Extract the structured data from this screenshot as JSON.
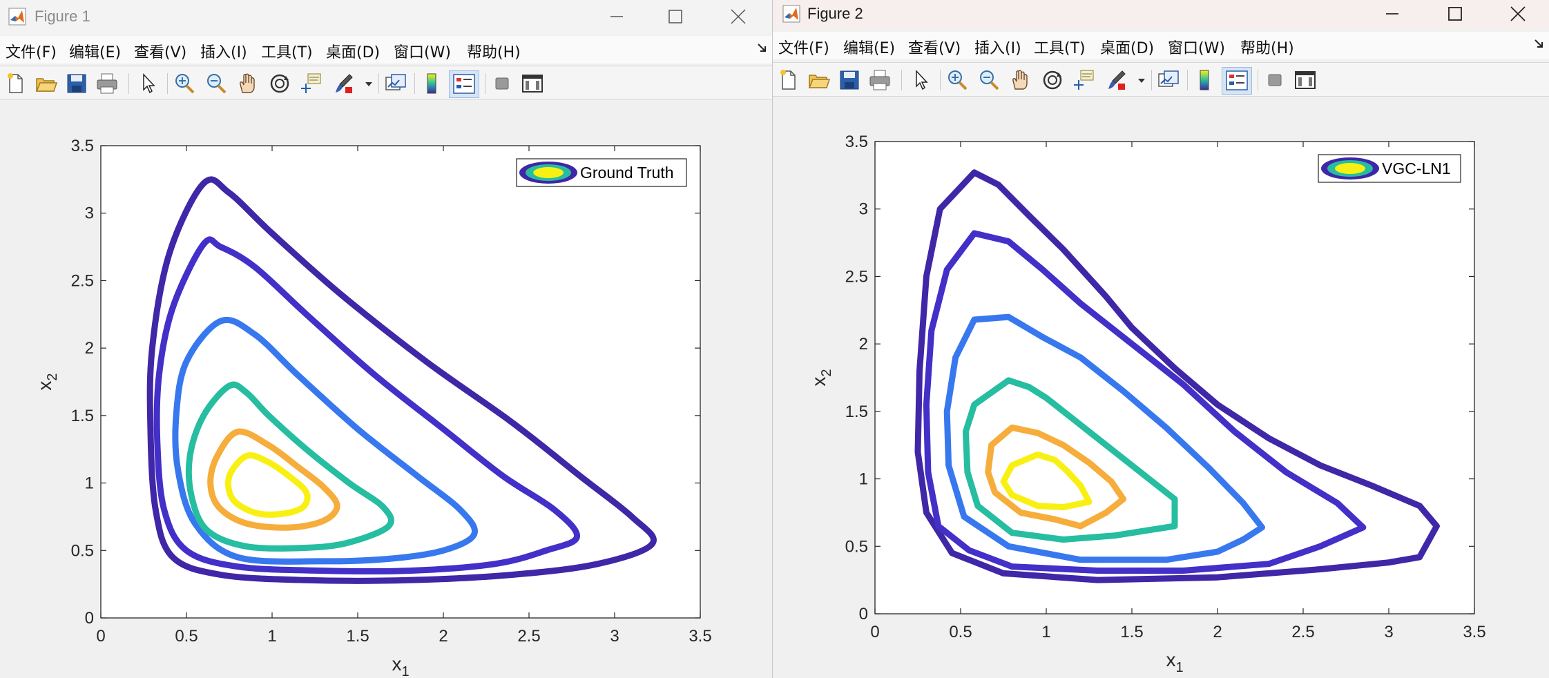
{
  "windows": [
    {
      "title": "Figure 1",
      "menu": [
        "文件(F)",
        "编辑(E)",
        "查看(V)",
        "插入(I)",
        "工具(T)",
        "桌面(D)",
        "窗口(W)",
        "帮助(H)"
      ],
      "legend": "Ground Truth",
      "toolbar_icons": [
        "new-figure-icon",
        "open-file-icon",
        "save-icon",
        "print-icon",
        "pointer-icon",
        "zoom-in-icon",
        "zoom-out-icon",
        "pan-icon",
        "rotate-3d-icon",
        "data-cursor-icon",
        "brush-icon",
        "link-plot-icon",
        "colorbar-icon",
        "legend-icon",
        "hide-plot-tools-icon",
        "show-plot-tools-icon"
      ],
      "chart_data": {
        "type": "contour",
        "xlabel": "x",
        "xlabel_sub": "1",
        "ylabel": "x",
        "ylabel_sub": "2",
        "xlim": [
          0,
          3.5
        ],
        "ylim": [
          0,
          3.5
        ],
        "xticks": [
          "0",
          "0.5",
          "1",
          "1.5",
          "2",
          "2.5",
          "3",
          "3.5"
        ],
        "yticks": [
          "0",
          "0.5",
          "1",
          "1.5",
          "2",
          "2.5",
          "3",
          "3.5"
        ],
        "legend_position": "top-right",
        "grid": false,
        "levels": [
          {
            "color": "#3f27a7",
            "points": [
              [
                0.6,
                3.22
              ],
              [
                0.4,
                2.7
              ],
              [
                0.3,
                2.0
              ],
              [
                0.29,
                1.4
              ],
              [
                0.32,
                0.8
              ],
              [
                0.42,
                0.45
              ],
              [
                0.7,
                0.32
              ],
              [
                1.2,
                0.28
              ],
              [
                1.8,
                0.28
              ],
              [
                2.4,
                0.32
              ],
              [
                2.9,
                0.4
              ],
              [
                3.22,
                0.55
              ],
              [
                3.1,
                0.75
              ],
              [
                2.8,
                1.05
              ],
              [
                2.4,
                1.45
              ],
              [
                1.9,
                1.9
              ],
              [
                1.4,
                2.4
              ],
              [
                1.0,
                2.85
              ],
              [
                0.75,
                3.15
              ]
            ]
          },
          {
            "color": "#4230c8",
            "points": [
              [
                0.6,
                2.77
              ],
              [
                0.42,
                2.3
              ],
              [
                0.34,
                1.8
              ],
              [
                0.33,
                1.3
              ],
              [
                0.37,
                0.8
              ],
              [
                0.5,
                0.5
              ],
              [
                0.8,
                0.38
              ],
              [
                1.3,
                0.35
              ],
              [
                1.8,
                0.35
              ],
              [
                2.3,
                0.4
              ],
              [
                2.6,
                0.5
              ],
              [
                2.78,
                0.6
              ],
              [
                2.65,
                0.8
              ],
              [
                2.35,
                1.05
              ],
              [
                2.0,
                1.4
              ],
              [
                1.6,
                1.8
              ],
              [
                1.2,
                2.25
              ],
              [
                0.9,
                2.6
              ],
              [
                0.7,
                2.75
              ]
            ]
          },
          {
            "color": "#3878ef",
            "points": [
              [
                0.7,
                2.2
              ],
              [
                0.5,
                1.9
              ],
              [
                0.44,
                1.5
              ],
              [
                0.45,
                1.1
              ],
              [
                0.55,
                0.7
              ],
              [
                0.8,
                0.45
              ],
              [
                1.3,
                0.42
              ],
              [
                1.7,
                0.44
              ],
              [
                2.0,
                0.5
              ],
              [
                2.18,
                0.62
              ],
              [
                2.1,
                0.8
              ],
              [
                1.85,
                1.05
              ],
              [
                1.5,
                1.4
              ],
              [
                1.15,
                1.8
              ],
              [
                0.9,
                2.1
              ]
            ]
          },
          {
            "color": "#26bda0",
            "points": [
              [
                0.75,
                1.72
              ],
              [
                0.6,
                1.5
              ],
              [
                0.52,
                1.2
              ],
              [
                0.53,
                0.9
              ],
              [
                0.62,
                0.65
              ],
              [
                0.85,
                0.53
              ],
              [
                1.2,
                0.52
              ],
              [
                1.45,
                0.56
              ],
              [
                1.68,
                0.68
              ],
              [
                1.65,
                0.82
              ],
              [
                1.45,
                1.0
              ],
              [
                1.2,
                1.25
              ],
              [
                0.98,
                1.5
              ],
              [
                0.85,
                1.67
              ]
            ]
          },
          {
            "color": "#f6ad3b",
            "points": [
              [
                0.8,
                1.38
              ],
              [
                0.68,
                1.2
              ],
              [
                0.64,
                1.0
              ],
              [
                0.69,
                0.82
              ],
              [
                0.85,
                0.7
              ],
              [
                1.1,
                0.67
              ],
              [
                1.3,
                0.72
              ],
              [
                1.38,
                0.83
              ],
              [
                1.3,
                0.97
              ],
              [
                1.15,
                1.12
              ],
              [
                0.98,
                1.28
              ]
            ]
          },
          {
            "color": "#f9f013",
            "points": [
              [
                0.85,
                1.2
              ],
              [
                0.75,
                1.05
              ],
              [
                0.77,
                0.88
              ],
              [
                0.9,
                0.78
              ],
              [
                1.05,
                0.77
              ],
              [
                1.18,
                0.82
              ],
              [
                1.2,
                0.93
              ],
              [
                1.1,
                1.05
              ],
              [
                0.97,
                1.16
              ]
            ]
          }
        ]
      }
    },
    {
      "title": "Figure 2",
      "menu": [
        "文件(F)",
        "编辑(E)",
        "查看(V)",
        "插入(I)",
        "工具(T)",
        "桌面(D)",
        "窗口(W)",
        "帮助(H)"
      ],
      "legend": "VGC-LN1",
      "toolbar_icons": [
        "new-figure-icon",
        "open-file-icon",
        "save-icon",
        "print-icon",
        "pointer-icon",
        "zoom-in-icon",
        "zoom-out-icon",
        "pan-icon",
        "rotate-3d-icon",
        "data-cursor-icon",
        "brush-icon",
        "link-plot-icon",
        "colorbar-icon",
        "legend-icon",
        "hide-plot-tools-icon",
        "show-plot-tools-icon"
      ],
      "chart_data": {
        "type": "contour",
        "xlabel": "x",
        "xlabel_sub": "1",
        "ylabel": "x",
        "ylabel_sub": "2",
        "xlim": [
          0,
          3.5
        ],
        "ylim": [
          0,
          3.5
        ],
        "xticks": [
          "0",
          "0.5",
          "1",
          "1.5",
          "2",
          "2.5",
          "3",
          "3.5"
        ],
        "yticks": [
          "0",
          "0.5",
          "1",
          "1.5",
          "2",
          "2.5",
          "3",
          "3.5"
        ],
        "legend_position": "top-right",
        "grid": false,
        "levels": [
          {
            "color": "#3f27a7",
            "points": [
              [
                0.58,
                3.27
              ],
              [
                0.38,
                3.0
              ],
              [
                0.3,
                2.5
              ],
              [
                0.26,
                1.8
              ],
              [
                0.25,
                1.2
              ],
              [
                0.3,
                0.75
              ],
              [
                0.45,
                0.45
              ],
              [
                0.75,
                0.3
              ],
              [
                1.3,
                0.25
              ],
              [
                2.0,
                0.27
              ],
              [
                2.6,
                0.33
              ],
              [
                3.0,
                0.38
              ],
              [
                3.18,
                0.42
              ],
              [
                3.28,
                0.65
              ],
              [
                3.18,
                0.8
              ],
              [
                2.9,
                0.95
              ],
              [
                2.6,
                1.1
              ],
              [
                2.3,
                1.3
              ],
              [
                2.0,
                1.55
              ],
              [
                1.75,
                1.82
              ],
              [
                1.5,
                2.12
              ],
              [
                1.35,
                2.35
              ],
              [
                1.1,
                2.7
              ],
              [
                0.9,
                2.95
              ],
              [
                0.72,
                3.18
              ]
            ]
          },
          {
            "color": "#4230c8",
            "points": [
              [
                0.58,
                2.82
              ],
              [
                0.42,
                2.55
              ],
              [
                0.33,
                2.1
              ],
              [
                0.3,
                1.55
              ],
              [
                0.31,
                1.05
              ],
              [
                0.37,
                0.65
              ],
              [
                0.55,
                0.47
              ],
              [
                0.8,
                0.35
              ],
              [
                1.3,
                0.32
              ],
              [
                1.8,
                0.32
              ],
              [
                2.3,
                0.37
              ],
              [
                2.6,
                0.5
              ],
              [
                2.85,
                0.64
              ],
              [
                2.7,
                0.82
              ],
              [
                2.4,
                1.05
              ],
              [
                2.1,
                1.35
              ],
              [
                1.8,
                1.7
              ],
              [
                1.5,
                2.0
              ],
              [
                1.2,
                2.3
              ],
              [
                0.98,
                2.55
              ],
              [
                0.78,
                2.76
              ]
            ]
          },
          {
            "color": "#3878ef",
            "points": [
              [
                0.58,
                2.18
              ],
              [
                0.47,
                1.9
              ],
              [
                0.42,
                1.5
              ],
              [
                0.43,
                1.1
              ],
              [
                0.52,
                0.72
              ],
              [
                0.78,
                0.5
              ],
              [
                1.2,
                0.4
              ],
              [
                1.7,
                0.4
              ],
              [
                2.0,
                0.46
              ],
              [
                2.15,
                0.55
              ],
              [
                2.26,
                0.64
              ],
              [
                2.15,
                0.82
              ],
              [
                1.95,
                1.08
              ],
              [
                1.7,
                1.38
              ],
              [
                1.45,
                1.65
              ],
              [
                1.2,
                1.9
              ],
              [
                0.98,
                2.05
              ],
              [
                0.78,
                2.2
              ]
            ]
          },
          {
            "color": "#26bda0",
            "points": [
              [
                0.78,
                1.73
              ],
              [
                0.58,
                1.55
              ],
              [
                0.53,
                1.35
              ],
              [
                0.54,
                1.05
              ],
              [
                0.6,
                0.8
              ],
              [
                0.8,
                0.6
              ],
              [
                1.1,
                0.55
              ],
              [
                1.4,
                0.58
              ],
              [
                1.6,
                0.62
              ],
              [
                1.75,
                0.65
              ],
              [
                1.75,
                0.85
              ],
              [
                1.6,
                1.0
              ],
              [
                1.4,
                1.2
              ],
              [
                1.2,
                1.4
              ],
              [
                1.0,
                1.6
              ],
              [
                0.9,
                1.68
              ]
            ]
          },
          {
            "color": "#f6ad3b",
            "points": [
              [
                0.8,
                1.38
              ],
              [
                0.68,
                1.25
              ],
              [
                0.66,
                1.05
              ],
              [
                0.7,
                0.9
              ],
              [
                0.85,
                0.75
              ],
              [
                1.05,
                0.7
              ],
              [
                1.2,
                0.65
              ],
              [
                1.35,
                0.75
              ],
              [
                1.45,
                0.85
              ],
              [
                1.38,
                0.98
              ],
              [
                1.25,
                1.12
              ],
              [
                1.1,
                1.25
              ],
              [
                0.95,
                1.34
              ]
            ]
          },
          {
            "color": "#f9f013",
            "points": [
              [
                0.95,
                1.18
              ],
              [
                0.8,
                1.1
              ],
              [
                0.75,
                0.98
              ],
              [
                0.8,
                0.88
              ],
              [
                0.95,
                0.8
              ],
              [
                1.1,
                0.79
              ],
              [
                1.25,
                0.83
              ],
              [
                1.2,
                0.95
              ],
              [
                1.12,
                1.06
              ],
              [
                1.05,
                1.14
              ]
            ]
          }
        ]
      }
    }
  ]
}
